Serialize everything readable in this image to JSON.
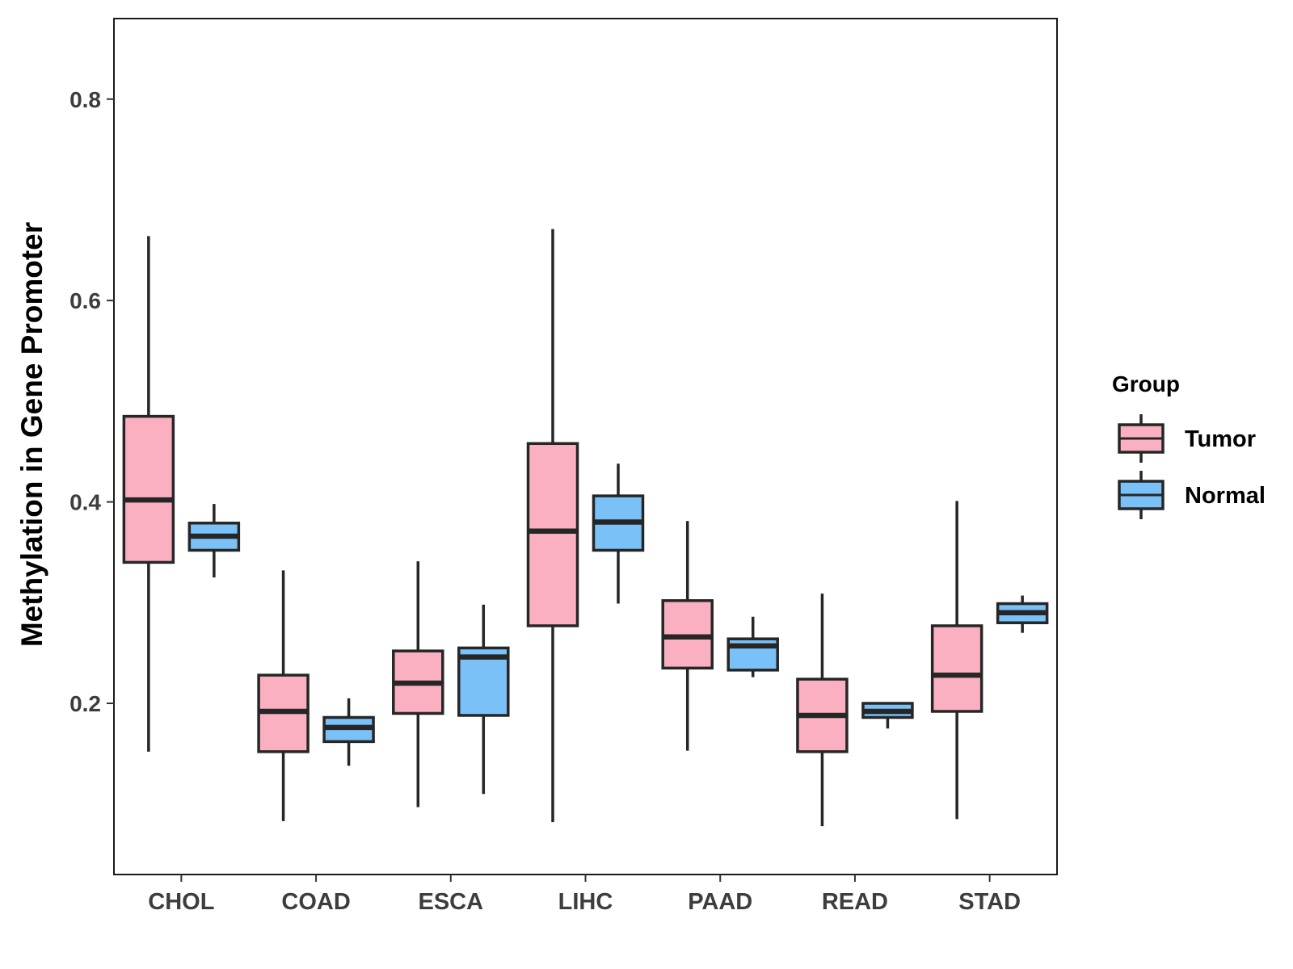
{
  "chart_data": {
    "type": "boxplot",
    "title": "",
    "xlabel": "",
    "ylabel": "Methylation in Gene Promoter",
    "ylim": [
      0.03,
      0.88
    ],
    "yticks": [
      0.2,
      0.4,
      0.6,
      0.8
    ],
    "ytick_labels": [
      "0.2",
      "0.4",
      "0.6",
      "0.8"
    ],
    "grid": false,
    "legend": {
      "title": "Group",
      "position": "right",
      "entries": [
        {
          "name": "Tumor",
          "color": "#fbb0c2"
        },
        {
          "name": "Normal",
          "color": "#79c1f7"
        }
      ]
    },
    "categories": [
      "CHOL",
      "COAD",
      "ESCA",
      "LIHC",
      "PAAD",
      "READ",
      "STAD"
    ],
    "series": [
      {
        "name": "Tumor",
        "color": "#fbb0c2",
        "boxes": [
          {
            "min": 0.152,
            "q1": 0.34,
            "median": 0.402,
            "q3": 0.485,
            "max": 0.664
          },
          {
            "min": 0.083,
            "q1": 0.152,
            "median": 0.192,
            "q3": 0.228,
            "max": 0.332
          },
          {
            "min": 0.097,
            "q1": 0.19,
            "median": 0.22,
            "q3": 0.252,
            "max": 0.341
          },
          {
            "min": 0.082,
            "q1": 0.277,
            "median": 0.371,
            "q3": 0.458,
            "max": 0.671
          },
          {
            "min": 0.153,
            "q1": 0.235,
            "median": 0.266,
            "q3": 0.302,
            "max": 0.381
          },
          {
            "min": 0.078,
            "q1": 0.152,
            "median": 0.188,
            "q3": 0.224,
            "max": 0.309
          },
          {
            "min": 0.085,
            "q1": 0.192,
            "median": 0.228,
            "q3": 0.277,
            "max": 0.401
          }
        ]
      },
      {
        "name": "Normal",
        "color": "#79c1f7",
        "boxes": [
          {
            "min": 0.325,
            "q1": 0.352,
            "median": 0.366,
            "q3": 0.379,
            "max": 0.398
          },
          {
            "min": 0.138,
            "q1": 0.162,
            "median": 0.176,
            "q3": 0.186,
            "max": 0.205
          },
          {
            "min": 0.11,
            "q1": 0.188,
            "median": 0.246,
            "q3": 0.255,
            "max": 0.298
          },
          {
            "min": 0.299,
            "q1": 0.352,
            "median": 0.38,
            "q3": 0.406,
            "max": 0.438
          },
          {
            "min": 0.226,
            "q1": 0.233,
            "median": 0.257,
            "q3": 0.264,
            "max": 0.286
          },
          {
            "min": 0.175,
            "q1": 0.186,
            "median": 0.192,
            "q3": 0.2,
            "max": 0.201
          },
          {
            "min": 0.27,
            "q1": 0.28,
            "median": 0.29,
            "q3": 0.299,
            "max": 0.307
          }
        ]
      }
    ]
  }
}
